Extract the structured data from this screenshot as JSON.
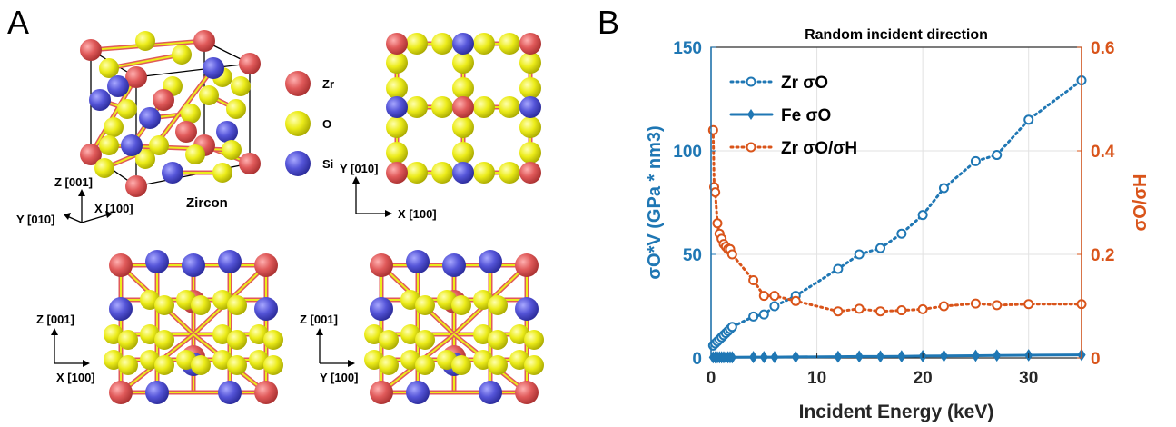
{
  "panel_a": {
    "letter": "A",
    "legend": [
      {
        "label": "Zr",
        "color": "#e05a5a"
      },
      {
        "label": "O",
        "color": "#ecec1a"
      },
      {
        "label": "Si",
        "color": "#5555d8"
      }
    ],
    "structure_label": "Zircon",
    "view1_axes": {
      "z": "Z [001]",
      "y": "Y [010]",
      "x": "X [100]"
    },
    "view2_axes": {
      "y": "Y [010]",
      "x": "X [100]"
    },
    "view3_axes": {
      "z": "Z [001]",
      "x": "X [100]"
    },
    "view4_axes": {
      "z": "Z [001]",
      "y": "Y [100]"
    }
  },
  "panel_b": {
    "letter": "B"
  },
  "chart_data": {
    "type": "line",
    "title": "Random incident direction",
    "xlabel": "Incident Energy (keV)",
    "ylabel_left": "σO*V (GPa * nm3)",
    "ylabel_right": "σO/σH",
    "xlim": [
      0,
      35
    ],
    "ylim_left": [
      0,
      150
    ],
    "ylim_right": [
      0,
      0.6
    ],
    "xticks": [
      "0",
      "10",
      "20",
      "30"
    ],
    "yticks_left": [
      "0",
      "50",
      "100",
      "150"
    ],
    "yticks_right": [
      "0",
      "0.2",
      "0.4",
      "0.6"
    ],
    "grid": true,
    "legend_position": "top-left",
    "colors": {
      "blue": "#1f77b4",
      "orange": "#d9541a"
    },
    "series": [
      {
        "name": "Zr σO",
        "axis": "left",
        "style": "dotted",
        "marker": "circle",
        "x": [
          0.2,
          0.4,
          0.6,
          0.8,
          1.0,
          1.2,
          1.4,
          1.6,
          1.8,
          2.0,
          4,
          5,
          6,
          8,
          12,
          14,
          16,
          18,
          20,
          22,
          25,
          27,
          30,
          35
        ],
        "y": [
          6,
          7,
          8,
          9,
          10,
          11,
          12,
          13,
          14,
          15,
          20,
          21,
          25,
          30,
          43,
          50,
          53,
          60,
          69,
          82,
          95,
          98,
          115,
          134
        ]
      },
      {
        "name": "Fe σO",
        "axis": "left",
        "style": "solid",
        "marker": "diamond",
        "x": [
          0.2,
          0.4,
          0.6,
          0.8,
          1.0,
          1.2,
          1.4,
          1.6,
          1.8,
          2.0,
          4,
          5,
          6,
          8,
          12,
          14,
          16,
          18,
          20,
          22,
          25,
          27,
          30,
          35
        ],
        "y": [
          0.3,
          0.3,
          0.3,
          0.3,
          0.3,
          0.3,
          0.3,
          0.3,
          0.3,
          0.3,
          0.4,
          0.4,
          0.4,
          0.5,
          0.6,
          0.7,
          0.7,
          0.8,
          0.9,
          1.0,
          1.1,
          1.2,
          1.3,
          1.5
        ]
      },
      {
        "name": "Zr σO/σH",
        "axis": "right",
        "style": "dotted",
        "marker": "circle",
        "x": [
          0.2,
          0.3,
          0.4,
          0.6,
          0.8,
          1.0,
          1.2,
          1.4,
          1.6,
          1.8,
          2.0,
          4,
          5,
          6,
          8,
          12,
          14,
          16,
          18,
          20,
          22,
          25,
          27,
          30,
          35
        ],
        "y": [
          0.44,
          0.33,
          0.32,
          0.26,
          0.24,
          0.23,
          0.22,
          0.215,
          0.21,
          0.21,
          0.2,
          0.15,
          0.12,
          0.12,
          0.11,
          0.09,
          0.095,
          0.09,
          0.092,
          0.094,
          0.1,
          0.105,
          0.102,
          0.104,
          0.104
        ]
      }
    ]
  }
}
